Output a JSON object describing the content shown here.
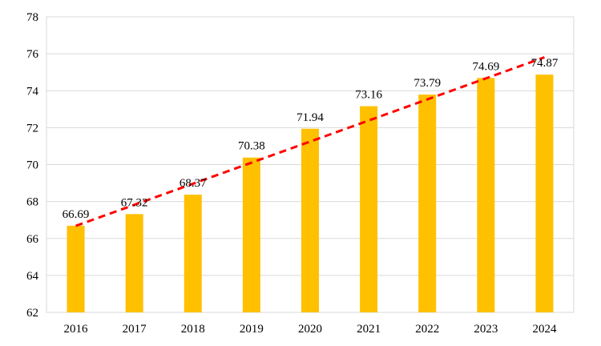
{
  "chart_data": {
    "type": "bar",
    "title": "",
    "xlabel": "",
    "ylabel": "",
    "categories": [
      "2016",
      "2017",
      "2018",
      "2019",
      "2020",
      "2021",
      "2022",
      "2023",
      "2024"
    ],
    "series": [
      {
        "values": [
          66.69,
          67.32,
          68.37,
          70.38,
          71.94,
          73.16,
          73.79,
          74.69,
          74.87
        ],
        "value_labels": [
          "66.69",
          "67.32",
          "68.37",
          "70.38",
          "71.94",
          "73.16",
          "73.79",
          "74.69",
          "74.87"
        ],
        "color": "#FFC000"
      }
    ],
    "trendline": {
      "type": "linear",
      "style": "dashed",
      "color": "#FF0000"
    },
    "ylim": [
      62,
      78
    ],
    "yticks": [
      "62",
      "64",
      "66",
      "68",
      "70",
      "72",
      "74",
      "76",
      "78"
    ],
    "grid": true,
    "gridline_color": "#D9D9D9",
    "legend": "none"
  }
}
